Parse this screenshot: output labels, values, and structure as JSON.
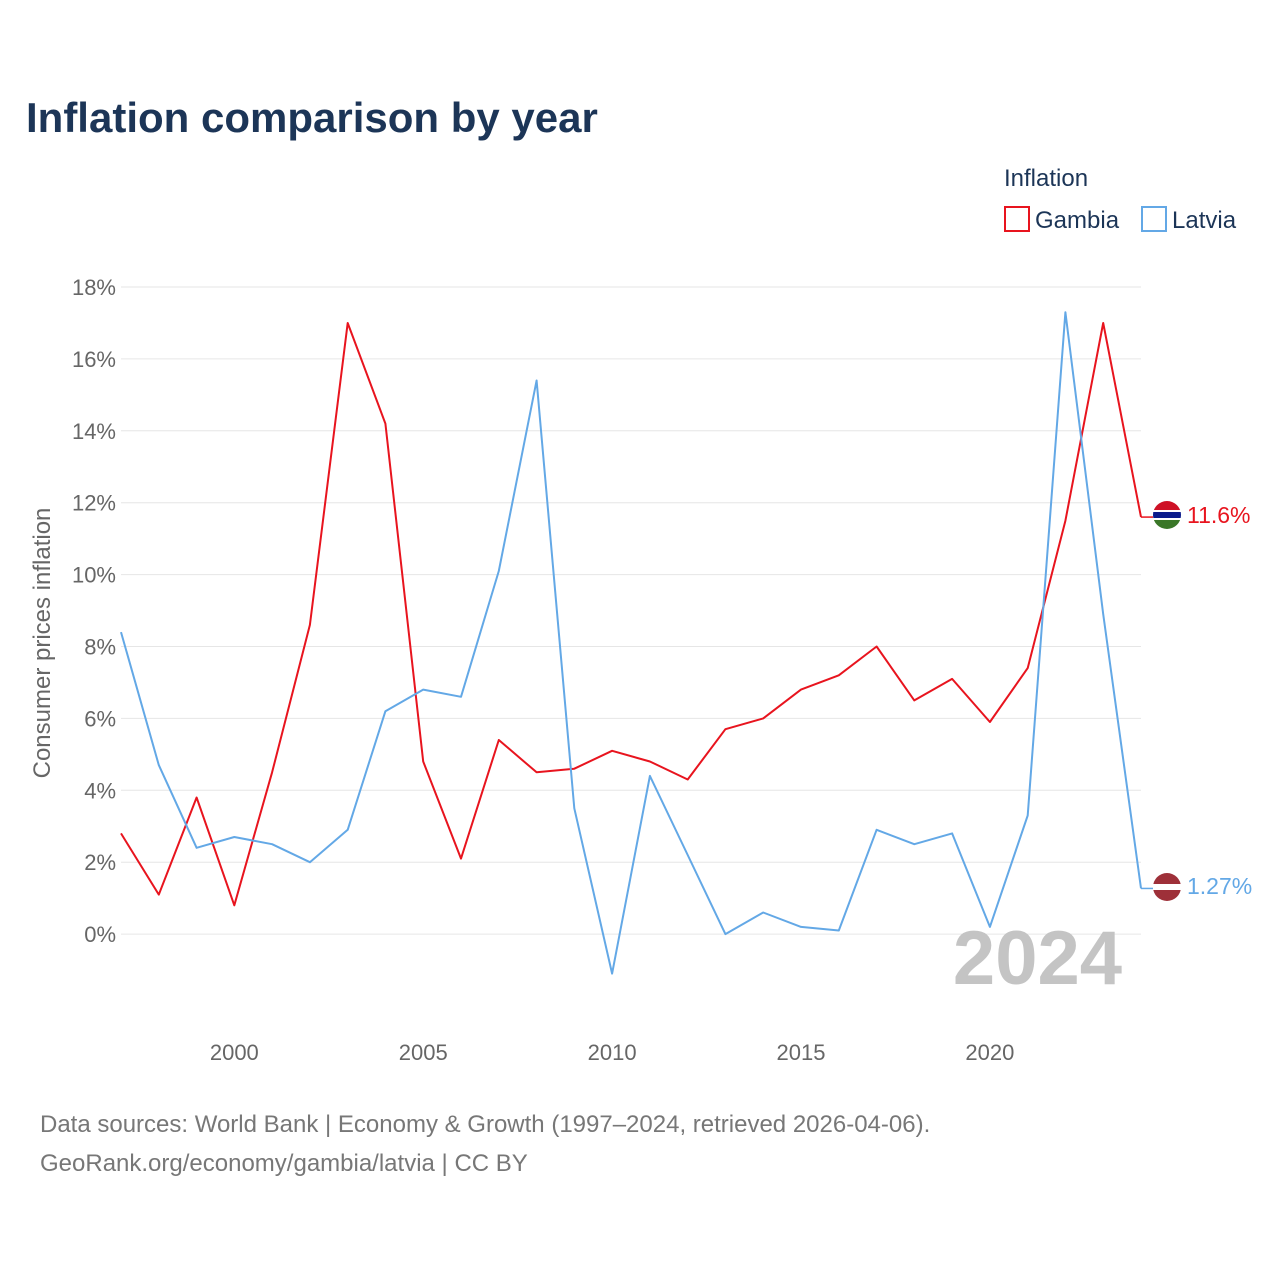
{
  "title": "Inflation comparison by year",
  "legend": {
    "title": "Inflation",
    "items": [
      {
        "name": "Gambia",
        "color": "#e8141e"
      },
      {
        "name": "Latvia",
        "color": "#63a8e6"
      }
    ]
  },
  "current_year": "2024",
  "source_line1": "Data sources: World Bank | Economy & Growth (1997–2024, retrieved 2026-04-06).",
  "source_line2": "GeoRank.org/economy/gambia/latvia | CC BY",
  "end_labels": {
    "gambia": "11.6%",
    "latvia": "1.27%"
  },
  "chart_data": {
    "type": "line",
    "title": "Inflation comparison by year",
    "xlabel": "",
    "ylabel": "Consumer prices inflation",
    "xlim": [
      1997,
      2024
    ],
    "ylim": [
      -2,
      18
    ],
    "x_ticks": [
      2000,
      2005,
      2010,
      2015,
      2020
    ],
    "y_ticks": [
      0,
      2,
      4,
      6,
      8,
      10,
      12,
      14,
      16,
      18
    ],
    "y_tick_labels": [
      "0%",
      "2%",
      "4%",
      "6%",
      "8%",
      "10%",
      "12%",
      "14%",
      "16%",
      "18%"
    ],
    "x": [
      1997,
      1998,
      1999,
      2000,
      2001,
      2002,
      2003,
      2004,
      2005,
      2006,
      2007,
      2008,
      2009,
      2010,
      2011,
      2012,
      2013,
      2014,
      2015,
      2016,
      2017,
      2018,
      2019,
      2020,
      2021,
      2022,
      2023,
      2024
    ],
    "series": [
      {
        "name": "Gambia",
        "color": "#e8141e",
        "values": [
          2.8,
          1.1,
          3.8,
          0.8,
          4.5,
          8.6,
          17.0,
          14.2,
          4.8,
          2.1,
          5.4,
          4.5,
          4.6,
          5.1,
          4.8,
          4.3,
          5.7,
          6.0,
          6.8,
          7.2,
          8.0,
          6.5,
          7.1,
          5.9,
          7.4,
          11.5,
          17.0,
          11.6
        ]
      },
      {
        "name": "Latvia",
        "color": "#63a8e6",
        "values": [
          8.4,
          4.7,
          2.4,
          2.7,
          2.5,
          2.0,
          2.9,
          6.2,
          6.8,
          6.6,
          10.1,
          15.4,
          3.5,
          -1.1,
          4.4,
          2.2,
          0.0,
          0.6,
          0.2,
          0.1,
          2.9,
          2.5,
          2.8,
          0.2,
          3.3,
          17.3,
          8.9,
          1.27
        ]
      }
    ]
  }
}
